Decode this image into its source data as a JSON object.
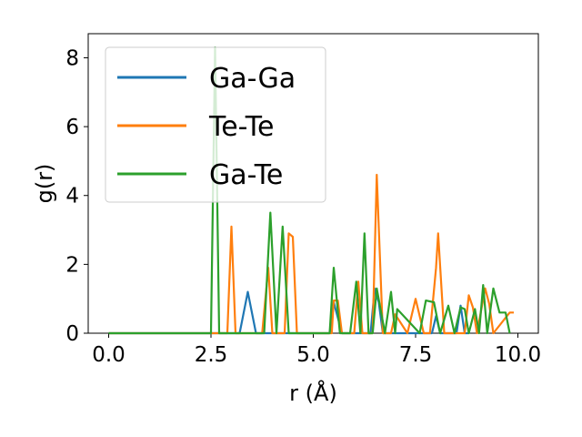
{
  "chart_data": {
    "type": "line",
    "title": "",
    "xlabel": "r (Å)",
    "ylabel": "g(r)",
    "xlim": [
      -0.5,
      10.5
    ],
    "ylim": [
      0,
      8.7
    ],
    "xticks": [
      "0.0",
      "2.5",
      "5.0",
      "7.5",
      "10.0"
    ],
    "yticks": [
      "0",
      "2",
      "4",
      "6",
      "8"
    ],
    "xtick_values": [
      0,
      2.5,
      5.0,
      7.5,
      10.0
    ],
    "ytick_values": [
      0,
      2,
      4,
      6,
      8
    ],
    "grid": false,
    "legend_position": "upper-left",
    "series": [
      {
        "name": "Ga-Ga",
        "color": "#1f77b4",
        "x": [
          0.0,
          3.2,
          3.4,
          3.6,
          5.4,
          5.5,
          5.7,
          6.4,
          6.5,
          6.6,
          6.7,
          7.9,
          8.0,
          8.1,
          8.5,
          8.6,
          8.7,
          8.8
        ],
        "y": [
          0,
          0,
          1.2,
          0,
          0,
          0.9,
          0,
          0,
          1.3,
          0.9,
          0,
          0,
          0.5,
          0,
          0,
          0.8,
          0,
          0
        ]
      },
      {
        "name": "Te-Te",
        "color": "#ff7f0e",
        "x": [
          0.0,
          2.9,
          3.0,
          3.1,
          3.75,
          3.9,
          4.0,
          4.3,
          4.4,
          4.5,
          4.6,
          5.45,
          5.5,
          5.6,
          5.7,
          6.0,
          6.1,
          6.2,
          6.3,
          6.45,
          6.55,
          6.7,
          6.9,
          7.0,
          7.3,
          7.5,
          7.7,
          7.85,
          8.0,
          8.05,
          8.2,
          8.7,
          8.8,
          8.9,
          9.0,
          9.2,
          9.3,
          9.4,
          9.8,
          9.9
        ],
        "y": [
          0,
          0,
          3.1,
          0,
          0,
          1.9,
          0,
          0,
          2.9,
          2.8,
          0,
          0,
          0.95,
          0.95,
          0,
          0,
          1.5,
          0,
          0,
          0,
          4.6,
          0,
          0,
          0.55,
          0,
          1.0,
          0,
          0,
          1.9,
          2.9,
          0,
          0,
          1.1,
          0.75,
          0,
          1.3,
          0.85,
          0,
          0.6,
          0.6
        ]
      },
      {
        "name": "Ga-Te",
        "color": "#2ca02c",
        "x": [
          0.0,
          2.5,
          2.6,
          2.7,
          3.8,
          3.95,
          4.1,
          4.25,
          4.4,
          5.4,
          5.5,
          5.65,
          5.9,
          6.05,
          6.15,
          6.25,
          6.35,
          6.45,
          6.55,
          6.75,
          6.9,
          7.0,
          7.05,
          7.6,
          7.75,
          7.95,
          8.1,
          8.3,
          8.45,
          8.6,
          8.7,
          8.8,
          8.95,
          9.05,
          9.15,
          9.25,
          9.4,
          9.55,
          9.7,
          9.8
        ],
        "y": [
          0,
          0,
          8.3,
          0,
          0,
          3.5,
          0,
          3.1,
          0,
          0,
          1.9,
          0,
          0,
          1.5,
          0,
          2.9,
          0,
          0,
          1.3,
          0,
          1.2,
          0,
          0.7,
          0,
          0.95,
          0.9,
          0,
          0.8,
          0,
          0.75,
          0.7,
          0,
          0.7,
          0,
          1.4,
          0,
          1.3,
          0.6,
          0.6,
          0
        ]
      }
    ]
  }
}
